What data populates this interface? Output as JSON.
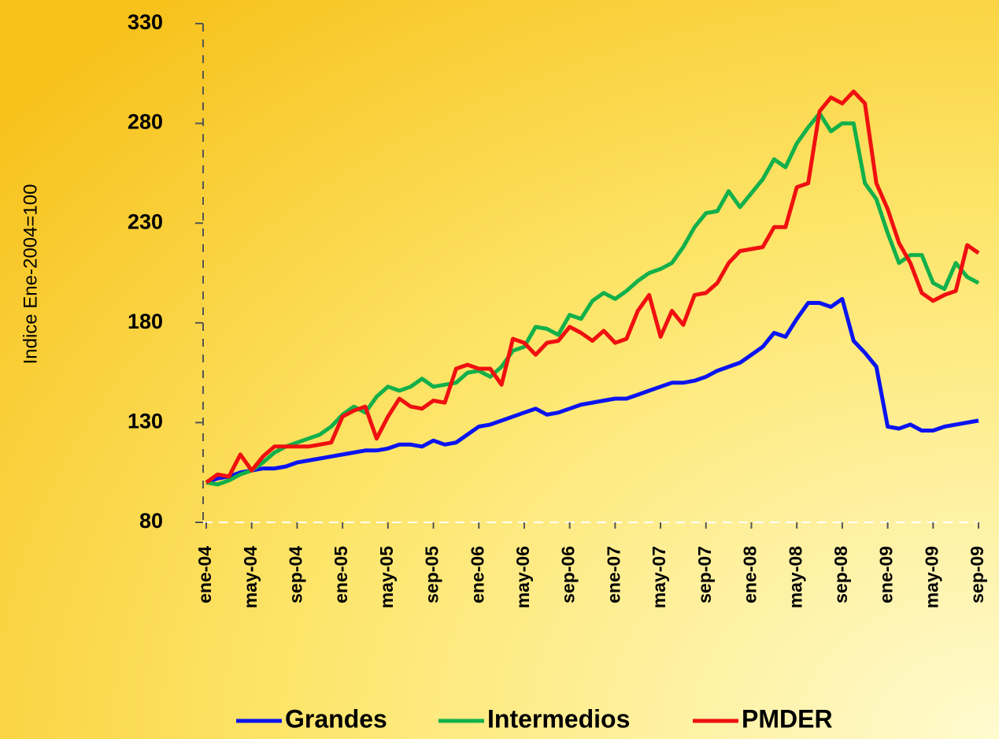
{
  "chart_data": {
    "type": "line",
    "y_label": "Indice Ene-2004=100",
    "categories": [
      "ene-04",
      null,
      null,
      null,
      "may-04",
      null,
      null,
      null,
      "sep-04",
      null,
      null,
      null,
      "ene-05",
      null,
      null,
      null,
      "may-05",
      null,
      null,
      null,
      "sep-05",
      null,
      null,
      null,
      "ene-06",
      null,
      null,
      null,
      "may-06",
      null,
      null,
      null,
      "sep-06",
      null,
      null,
      null,
      "ene-07",
      null,
      null,
      null,
      "may-07",
      null,
      null,
      null,
      "sep-07",
      null,
      null,
      null,
      "ene-08",
      null,
      null,
      null,
      "may-08",
      null,
      null,
      null,
      "sep-08",
      null,
      null,
      null,
      "ene-09",
      null,
      null,
      null,
      "may-09",
      null,
      null,
      null,
      "sep-09"
    ],
    "series": [
      {
        "name": "Grandes",
        "color": "#0a14f0",
        "values": [
          100,
          102,
          103,
          105,
          106,
          107,
          107,
          108,
          110,
          111,
          112,
          113,
          114,
          115,
          116,
          116,
          117,
          119,
          119,
          118,
          121,
          119,
          120,
          124,
          128,
          129,
          131,
          133,
          135,
          137,
          134,
          135,
          137,
          139,
          140,
          141,
          142,
          142,
          144,
          146,
          148,
          150,
          150,
          151,
          153,
          156,
          158,
          160,
          164,
          168,
          175,
          173,
          182,
          190,
          190,
          188,
          192,
          171,
          165,
          158,
          128,
          127,
          129,
          126,
          126,
          128,
          129,
          130,
          131
        ]
      },
      {
        "name": "Intermedios",
        "color": "#12b04a",
        "values": [
          100,
          99,
          101,
          104,
          106,
          110,
          115,
          118,
          120,
          122,
          124,
          128,
          134,
          138,
          135,
          143,
          148,
          146,
          148,
          152,
          148,
          149,
          150,
          155,
          156,
          153,
          158,
          166,
          168,
          178,
          177,
          174,
          184,
          182,
          191,
          195,
          192,
          196,
          201,
          205,
          207,
          210,
          218,
          228,
          235,
          236,
          246,
          238,
          245,
          252,
          262,
          258,
          270,
          278,
          285,
          276,
          280,
          280,
          250,
          242,
          225,
          210,
          214,
          214,
          200,
          197,
          210,
          203,
          200
        ]
      },
      {
        "name": "PMDER",
        "color": "#f01010",
        "values": [
          100,
          104,
          103,
          114,
          106,
          113,
          118,
          118,
          118,
          118,
          119,
          120,
          133,
          136,
          138,
          122,
          133,
          142,
          138,
          137,
          141,
          140,
          157,
          159,
          157,
          157,
          149,
          172,
          170,
          164,
          170,
          171,
          178,
          175,
          171,
          176,
          170,
          172,
          186,
          194,
          173,
          186,
          179,
          194,
          195,
          200,
          210,
          216,
          217,
          218,
          228,
          228,
          248,
          250,
          286,
          293,
          290,
          296,
          290,
          250,
          237,
          220,
          210,
          195,
          191,
          194,
          196,
          219,
          215
        ]
      }
    ],
    "ylim": [
      80,
      330
    ],
    "yticks": [
      80,
      130,
      180,
      230,
      280,
      330
    ]
  }
}
